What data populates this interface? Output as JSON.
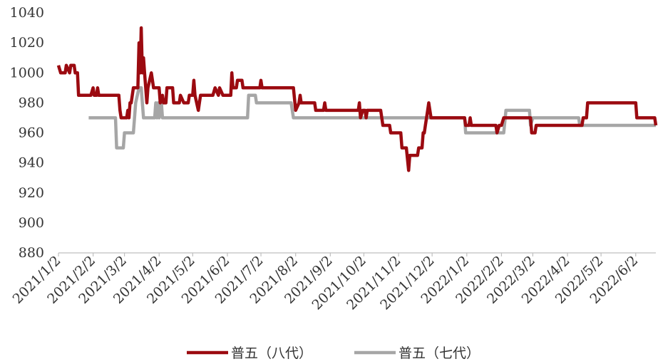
{
  "chart_data": {
    "type": "line",
    "title": "",
    "xlabel": "",
    "ylabel": "",
    "ylim": [
      880,
      1040
    ],
    "yticks": [
      880,
      900,
      920,
      940,
      960,
      980,
      1000,
      1020,
      1040
    ],
    "xlim": [
      "2021-01-02",
      "2022-06-20"
    ],
    "x_tick_labels": [
      "2021/1/2",
      "2021/2/2",
      "2021/3/2",
      "2021/4/2",
      "2021/5/2",
      "2021/6/2",
      "2021/7/2",
      "2021/8/2",
      "2021/9/2",
      "2021/10/2",
      "2021/11/2",
      "2021/12/2",
      "2022/1/2",
      "2022/2/2",
      "2022/3/2",
      "2022/4/2",
      "2022/5/2",
      "2022/6/2"
    ],
    "x_tick_dates": [
      "2021-01-02",
      "2021-02-02",
      "2021-03-02",
      "2021-04-02",
      "2021-05-02",
      "2021-06-02",
      "2021-07-02",
      "2021-08-02",
      "2021-09-02",
      "2021-10-02",
      "2021-11-02",
      "2021-12-02",
      "2022-01-02",
      "2022-02-02",
      "2022-03-02",
      "2022-04-02",
      "2022-05-02",
      "2022-06-02"
    ],
    "grid": false,
    "legend_position": "bottom",
    "series": [
      {
        "name": "普五（八代）",
        "color": "#9B0A10",
        "points": [
          [
            "2021-01-02",
            1005
          ],
          [
            "2021-01-04",
            1000
          ],
          [
            "2021-01-08",
            1000
          ],
          [
            "2021-01-09",
            1005
          ],
          [
            "2021-01-12",
            1000
          ],
          [
            "2021-01-13",
            1005
          ],
          [
            "2021-01-16",
            1005
          ],
          [
            "2021-01-17",
            1000
          ],
          [
            "2021-01-19",
            1000
          ],
          [
            "2021-01-20",
            985
          ],
          [
            "2021-01-31",
            985
          ],
          [
            "2021-02-02",
            990
          ],
          [
            "2021-02-03",
            985
          ],
          [
            "2021-02-05",
            985
          ],
          [
            "2021-02-06",
            990
          ],
          [
            "2021-02-07",
            985
          ],
          [
            "2021-02-25",
            985
          ],
          [
            "2021-02-26",
            975
          ],
          [
            "2021-02-27",
            970
          ],
          [
            "2021-03-04",
            970
          ],
          [
            "2021-03-05",
            975
          ],
          [
            "2021-03-06",
            970
          ],
          [
            "2021-03-07",
            980
          ],
          [
            "2021-03-08",
            980
          ],
          [
            "2021-03-10",
            990
          ],
          [
            "2021-03-14",
            990
          ],
          [
            "2021-03-15",
            1020
          ],
          [
            "2021-03-16",
            1000
          ],
          [
            "2021-03-17",
            1030
          ],
          [
            "2021-03-18",
            1000
          ],
          [
            "2021-03-19",
            1010
          ],
          [
            "2021-03-20",
            1000
          ],
          [
            "2021-03-21",
            990
          ],
          [
            "2021-03-22",
            980
          ],
          [
            "2021-03-23",
            990
          ],
          [
            "2021-03-26",
            1000
          ],
          [
            "2021-03-28",
            990
          ],
          [
            "2021-04-02",
            990
          ],
          [
            "2021-04-03",
            980
          ],
          [
            "2021-04-05",
            985
          ],
          [
            "2021-04-06",
            980
          ],
          [
            "2021-04-08",
            980
          ],
          [
            "2021-04-09",
            990
          ],
          [
            "2021-04-14",
            990
          ],
          [
            "2021-04-15",
            980
          ],
          [
            "2021-04-20",
            980
          ],
          [
            "2021-04-21",
            985
          ],
          [
            "2021-04-24",
            980
          ],
          [
            "2021-04-28",
            980
          ],
          [
            "2021-04-29",
            985
          ],
          [
            "2021-05-02",
            985
          ],
          [
            "2021-05-03",
            995
          ],
          [
            "2021-05-04",
            985
          ],
          [
            "2021-05-07",
            975
          ],
          [
            "2021-05-08",
            980
          ],
          [
            "2021-05-09",
            985
          ],
          [
            "2021-05-20",
            985
          ],
          [
            "2021-05-22",
            990
          ],
          [
            "2021-05-25",
            985
          ],
          [
            "2021-05-26",
            990
          ],
          [
            "2021-05-29",
            985
          ],
          [
            "2021-06-05",
            985
          ],
          [
            "2021-06-06",
            1000
          ],
          [
            "2021-06-07",
            990
          ],
          [
            "2021-06-10",
            990
          ],
          [
            "2021-06-11",
            995
          ],
          [
            "2021-06-15",
            995
          ],
          [
            "2021-06-16",
            990
          ],
          [
            "2021-07-01",
            990
          ],
          [
            "2021-07-02",
            995
          ],
          [
            "2021-07-03",
            990
          ],
          [
            "2021-07-31",
            990
          ],
          [
            "2021-08-02",
            975
          ],
          [
            "2021-08-05",
            980
          ],
          [
            "2021-08-06",
            985
          ],
          [
            "2021-08-07",
            980
          ],
          [
            "2021-08-19",
            980
          ],
          [
            "2021-08-20",
            975
          ],
          [
            "2021-08-27",
            975
          ],
          [
            "2021-08-28",
            980
          ],
          [
            "2021-08-29",
            975
          ],
          [
            "2021-09-27",
            975
          ],
          [
            "2021-09-28",
            980
          ],
          [
            "2021-09-29",
            970
          ],
          [
            "2021-10-01",
            975
          ],
          [
            "2021-10-03",
            975
          ],
          [
            "2021-10-04",
            970
          ],
          [
            "2021-10-05",
            975
          ],
          [
            "2021-10-17",
            975
          ],
          [
            "2021-10-19",
            965
          ],
          [
            "2021-10-25",
            965
          ],
          [
            "2021-10-26",
            960
          ],
          [
            "2021-11-04",
            960
          ],
          [
            "2021-11-05",
            950
          ],
          [
            "2021-11-09",
            950
          ],
          [
            "2021-11-11",
            935
          ],
          [
            "2021-11-12",
            945
          ],
          [
            "2021-11-19",
            945
          ],
          [
            "2021-11-20",
            950
          ],
          [
            "2021-11-23",
            950
          ],
          [
            "2021-11-24",
            960
          ],
          [
            "2021-11-25",
            960
          ],
          [
            "2021-11-26",
            965
          ],
          [
            "2021-11-28",
            975
          ],
          [
            "2021-11-29",
            980
          ],
          [
            "2021-11-30",
            975
          ],
          [
            "2021-12-01",
            970
          ],
          [
            "2021-12-31",
            970
          ],
          [
            "2022-01-01",
            965
          ],
          [
            "2022-01-04",
            965
          ],
          [
            "2022-01-05",
            970
          ],
          [
            "2022-01-06",
            965
          ],
          [
            "2022-01-28",
            965
          ],
          [
            "2022-01-29",
            960
          ],
          [
            "2022-01-31",
            965
          ],
          [
            "2022-02-02",
            965
          ],
          [
            "2022-02-04",
            970
          ],
          [
            "2022-02-28",
            970
          ],
          [
            "2022-03-01",
            960
          ],
          [
            "2022-03-04",
            960
          ],
          [
            "2022-03-05",
            965
          ],
          [
            "2022-04-15",
            965
          ],
          [
            "2022-04-16",
            970
          ],
          [
            "2022-04-19",
            970
          ],
          [
            "2022-04-20",
            980
          ],
          [
            "2022-06-02",
            980
          ],
          [
            "2022-06-03",
            970
          ],
          [
            "2022-06-19",
            970
          ],
          [
            "2022-06-20",
            965
          ]
        ]
      },
      {
        "name": "普五（七代）",
        "color": "#A6A6A6",
        "points": [
          [
            "2021-01-29",
            970
          ],
          [
            "2021-02-22",
            970
          ],
          [
            "2021-02-23",
            950
          ],
          [
            "2021-03-01",
            950
          ],
          [
            "2021-03-02",
            960
          ],
          [
            "2021-03-10",
            960
          ],
          [
            "2021-03-11",
            970
          ],
          [
            "2021-03-12",
            980
          ],
          [
            "2021-03-15",
            990
          ],
          [
            "2021-03-17",
            990
          ],
          [
            "2021-03-19",
            970
          ],
          [
            "2021-03-29",
            970
          ],
          [
            "2021-03-30",
            980
          ],
          [
            "2021-03-31",
            970
          ],
          [
            "2021-04-01",
            980
          ],
          [
            "2021-04-02",
            970
          ],
          [
            "2021-04-04",
            980
          ],
          [
            "2021-04-05",
            970
          ],
          [
            "2021-06-20",
            970
          ],
          [
            "2021-06-21",
            985
          ],
          [
            "2021-06-27",
            985
          ],
          [
            "2021-06-28",
            980
          ],
          [
            "2021-07-29",
            980
          ],
          [
            "2021-07-31",
            970
          ],
          [
            "2021-12-31",
            970
          ],
          [
            "2022-01-01",
            960
          ],
          [
            "2022-01-28",
            960
          ],
          [
            "2022-02-04",
            960
          ],
          [
            "2022-02-06",
            975
          ],
          [
            "2022-02-27",
            975
          ],
          [
            "2022-02-28",
            965
          ],
          [
            "2022-03-02",
            970
          ],
          [
            "2022-04-12",
            970
          ],
          [
            "2022-04-13",
            965
          ],
          [
            "2022-06-20",
            965
          ]
        ]
      }
    ]
  }
}
